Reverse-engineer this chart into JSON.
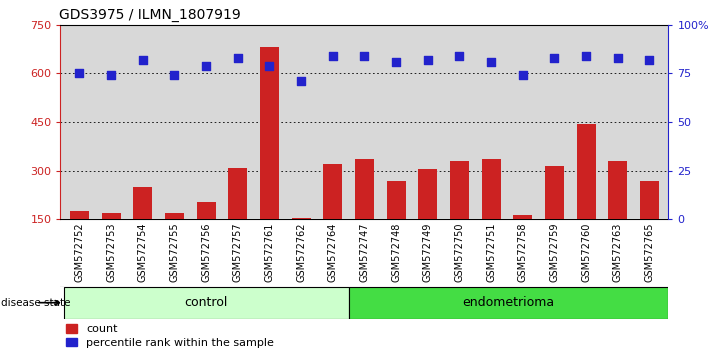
{
  "title": "GDS3975 / ILMN_1807919",
  "samples": [
    "GSM572752",
    "GSM572753",
    "GSM572754",
    "GSM572755",
    "GSM572756",
    "GSM572757",
    "GSM572761",
    "GSM572762",
    "GSM572764",
    "GSM572747",
    "GSM572748",
    "GSM572749",
    "GSM572750",
    "GSM572751",
    "GSM572758",
    "GSM572759",
    "GSM572760",
    "GSM572763",
    "GSM572765"
  ],
  "counts": [
    175,
    170,
    250,
    170,
    205,
    310,
    680,
    155,
    320,
    335,
    270,
    305,
    330,
    335,
    165,
    315,
    445,
    330,
    270
  ],
  "percentiles": [
    75,
    74,
    82,
    74,
    79,
    83,
    79,
    71,
    84,
    84,
    81,
    82,
    84,
    81,
    74,
    83,
    84,
    83,
    82
  ],
  "n_control": 9,
  "n_endometrioma": 10,
  "ylim_left": [
    150,
    750
  ],
  "ylim_right": [
    0,
    100
  ],
  "yticks_left": [
    150,
    300,
    450,
    600,
    750
  ],
  "yticks_right": [
    0,
    25,
    50,
    75,
    100
  ],
  "yticklabels_right": [
    "0",
    "25",
    "50",
    "75",
    "100%"
  ],
  "bar_color": "#cc2222",
  "dot_color": "#2222cc",
  "control_color": "#ccffcc",
  "endometrioma_color": "#44dd44",
  "bg_color": "#d8d8d8",
  "label_color_left": "#cc2222",
  "label_color_right": "#2222cc",
  "legend_count_label": "count",
  "legend_pct_label": "percentile rank within the sample",
  "disease_state_label": "disease state",
  "control_label": "control",
  "endometrioma_label": "endometrioma"
}
